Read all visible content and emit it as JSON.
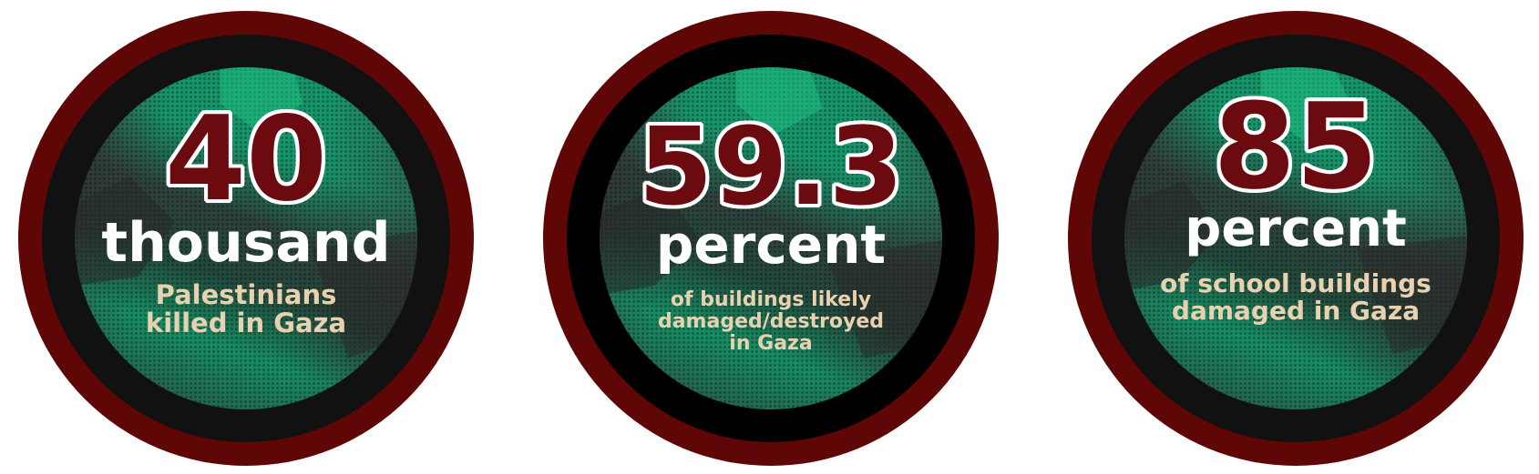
{
  "colors": {
    "outer_ring": "#5f0606",
    "inner_ring": "#111111",
    "disc_green": "#17956a",
    "number": "#6b0a0f",
    "unit_text": "#ffffff",
    "description_text": "#e8d1b0"
  },
  "stats": [
    {
      "number": "40",
      "unit": "thousand",
      "lines": [
        "Palestinians",
        "killed in Gaza"
      ]
    },
    {
      "number": "59.3",
      "unit": "percent",
      "lines": [
        "of buildings likely",
        "damaged/destroyed",
        "in Gaza"
      ]
    },
    {
      "number": "85",
      "unit": "percent",
      "lines": [
        "of school buildings",
        "damaged in Gaza"
      ]
    }
  ]
}
